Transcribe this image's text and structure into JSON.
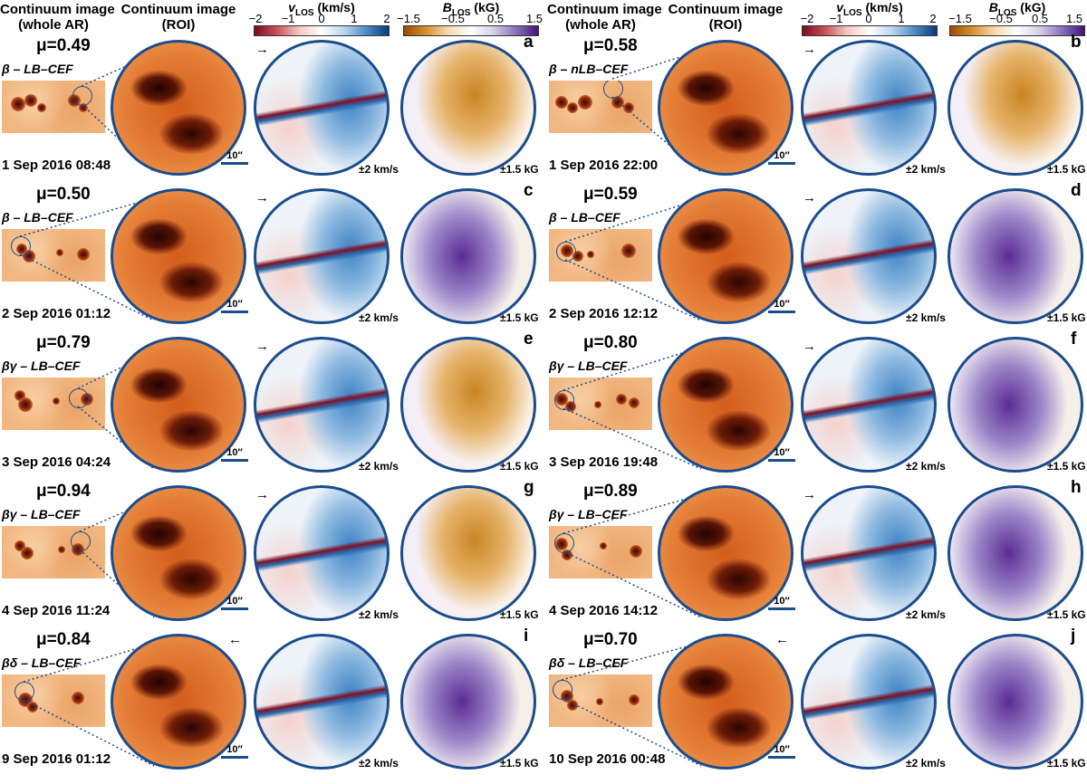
{
  "headers": {
    "cont_whole_1": "Continuum image",
    "cont_whole_2": "(whole AR)",
    "cont_roi_1": "Continuum image",
    "cont_roi_2": "(ROI)",
    "vlos_title": "v",
    "vlos_sub": "LOS",
    "vlos_unit": " (km/s)",
    "blos_title": "B",
    "blos_sub": "LOS",
    "blos_unit": " (kG)"
  },
  "colorbars": {
    "vlos_ticks": [
      "−2",
      "−1",
      "0",
      "1",
      "2"
    ],
    "blos_ticks": [
      "−1.5",
      "−0.5",
      "0.5",
      "1.5"
    ],
    "vlos_colors": [
      "#7a0a20",
      "#ffffff",
      "#083a7c"
    ],
    "blos_colors": [
      "#9c4b04",
      "#ffffff",
      "#45137a"
    ]
  },
  "labels": {
    "scale_bar": "10′′",
    "vel_range": "±2 km/s",
    "b_range": "±1.5 kG",
    "arrow_right": "→",
    "arrow_left": "←"
  },
  "panels": [
    {
      "letter": "a",
      "mu": "μ=0.49",
      "class": "β – LB–CEF",
      "date": "1 Sep 2016 08:48",
      "arrow": "right",
      "bfield": "orange"
    },
    {
      "letter": "b",
      "mu": "μ=0.58",
      "class": "β – nLB–CEF",
      "date": "1 Sep 2016 22:00",
      "arrow": "right",
      "bfield": "orange"
    },
    {
      "letter": "c",
      "mu": "μ=0.50",
      "class": "β – LB–CEF",
      "date": "2 Sep 2016 01:12",
      "arrow": "right",
      "bfield": "purple"
    },
    {
      "letter": "d",
      "mu": "μ=0.59",
      "class": "β – LB–CEF",
      "date": "2 Sep 2016 12:12",
      "arrow": "right",
      "bfield": "purple"
    },
    {
      "letter": "e",
      "mu": "μ=0.79",
      "class": "βγ – LB–CEF",
      "date": "3 Sep 2016 04:24",
      "arrow": "right",
      "bfield": "orange"
    },
    {
      "letter": "f",
      "mu": "μ=0.80",
      "class": "βγ – LB–CEF",
      "date": "3 Sep 2016 19:48",
      "arrow": "right",
      "bfield": "purple"
    },
    {
      "letter": "g",
      "mu": "μ=0.94",
      "class": "βγ – LB–CEF",
      "date": "4 Sep 2016 11:24",
      "arrow": "right",
      "bfield": "orange"
    },
    {
      "letter": "h",
      "mu": "μ=0.89",
      "class": "βγ – LB–CEF",
      "date": "4 Sep 2016 14:12",
      "arrow": "right",
      "bfield": "purple"
    },
    {
      "letter": "i",
      "mu": "μ=0.84",
      "class": "βδ – LB–CEF",
      "date": "9 Sep 2016 01:12",
      "arrow": "left",
      "bfield": "purple"
    },
    {
      "letter": "j",
      "mu": "μ=0.70",
      "class": "βδ – LB–CEF",
      "date": "10 Sep 2016 00:48",
      "arrow": "left",
      "bfield": "purple"
    }
  ]
}
